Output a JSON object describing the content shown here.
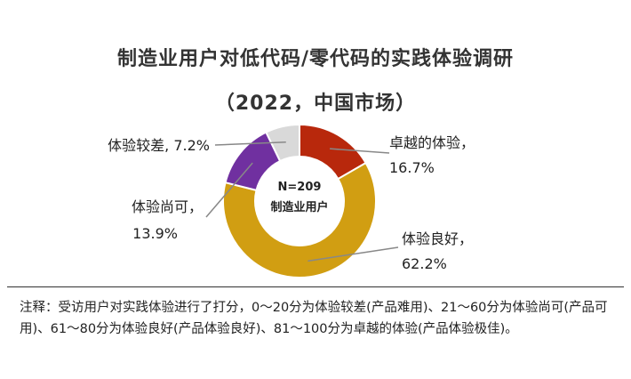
{
  "title_line1": "制造业用户对低代码/零代码的实践体验调研",
  "title_line2": "（2022，中国市场）",
  "center_label": {
    "line1": "N=209",
    "line2": "制造业用户"
  },
  "note": "注释：受访用户对实践体验进行了打分，0～20分为体验较差(产品难用)、21～60分为体验尚可(产品可用)、61～80分为体验良好(产品体验良好)、81～100分为卓越的体验(产品体验极佳)。",
  "chart_data": {
    "type": "pie",
    "variant": "donut",
    "sample": "N=209",
    "slices": [
      {
        "name": "卓越的体验",
        "value": 16.7,
        "label": "16.7%",
        "color": "#b8280c"
      },
      {
        "name": "体验良好",
        "value": 62.2,
        "label": "62.2%",
        "color": "#d19e12"
      },
      {
        "name": "体验尚可",
        "value": 13.9,
        "label": "13.9%",
        "color": "#7030a0"
      },
      {
        "name": "体验较差",
        "value": 7.2,
        "label": "7.2%",
        "color": "#d9d9d9"
      }
    ]
  }
}
